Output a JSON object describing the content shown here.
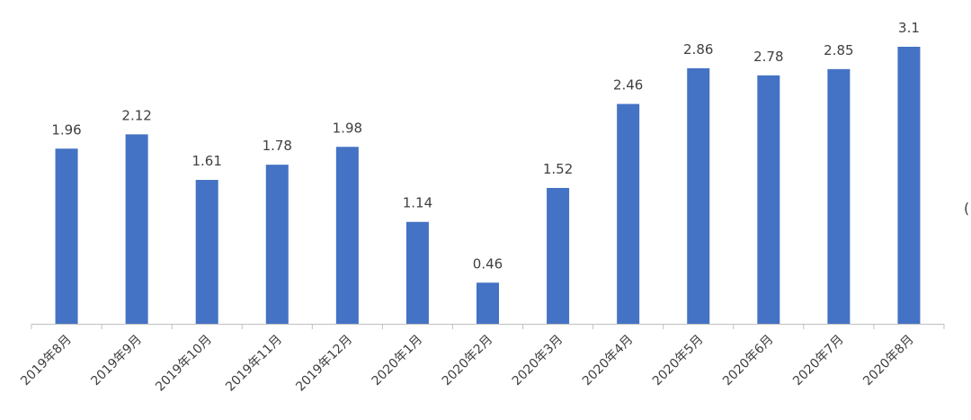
{
  "chart_data": {
    "type": "bar",
    "title": "",
    "xlabel": "",
    "ylabel": "",
    "categories": [
      "2019年8月",
      "2019年9月",
      "2019年10月",
      "2019年11月",
      "2019年12月",
      "2020年1月",
      "2020年2月",
      "2020年3月",
      "2020年4月",
      "2020年5月",
      "2020年6月",
      "2020年7月",
      "2020年8月"
    ],
    "values": [
      1.96,
      2.12,
      1.61,
      1.78,
      1.98,
      1.14,
      0.46,
      1.52,
      2.46,
      2.86,
      2.78,
      2.85,
      3.1
    ],
    "value_labels": [
      "1.96",
      "2.12",
      "1.61",
      "1.78",
      "1.98",
      "1.14",
      "0.46",
      "1.52",
      "2.46",
      "2.86",
      "2.78",
      "2.85",
      "3.1"
    ],
    "ylim": [
      0,
      3.1
    ],
    "grid": false,
    "data_labels": true,
    "bar_color": "#4472C4",
    "axis_color": "#BFBFBF",
    "label_color": "#404040"
  },
  "edge_glyph": "("
}
